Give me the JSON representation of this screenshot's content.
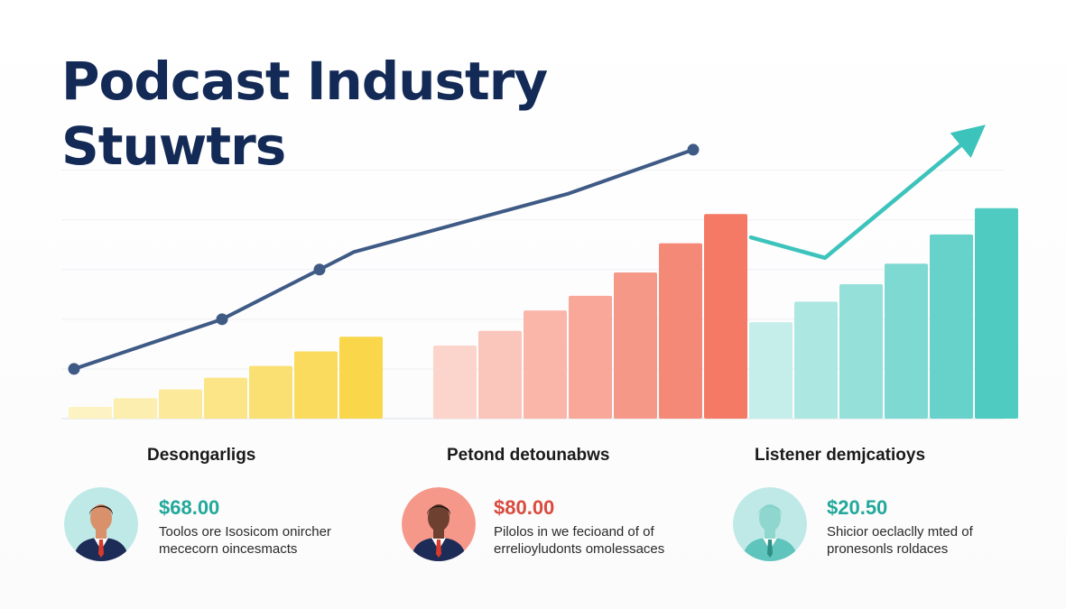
{
  "title": [
    "Podcast Industry",
    "Stuwtrs"
  ],
  "colors": {
    "title": "#132a56",
    "trend_line": "#3e5a85",
    "yellow_light": "#fdf3c2",
    "yellow_dark": "#f9d64a",
    "coral_light": "#fbd4cb",
    "coral_dark": "#f47a66",
    "teal_light": "#c5eeea",
    "teal_dark": "#4fcbc2",
    "teal_arrow": "#3cc3bb"
  },
  "chart_data": {
    "type": "bar",
    "title": "Podcast Industry Stuwtrs",
    "xlabel": "",
    "ylabel": "",
    "ylim": [
      0,
      100
    ],
    "grid": true,
    "series": [
      {
        "values": [
          4,
          7,
          10,
          14,
          18,
          23,
          28
        ]
      },
      {
        "values": [
          25,
          30,
          37,
          42,
          50,
          60,
          70
        ]
      },
      {
        "values": [
          33,
          40,
          46,
          53,
          63,
          72
        ]
      }
    ],
    "trend_line": [
      {
        "x": 0,
        "y": 17
      },
      {
        "x": 1,
        "y": 34
      },
      {
        "x": 2,
        "y": 51
      },
      {
        "x": 3,
        "y": 57
      },
      {
        "x": 4,
        "y": 77
      },
      {
        "x": 5,
        "y": 92
      }
    ],
    "trend_arrow": [
      {
        "x": 0,
        "y": 62
      },
      {
        "x": 1,
        "y": 55
      },
      {
        "x": 2,
        "y": 97
      }
    ]
  },
  "panels": [
    {
      "caption": "Desongarligs",
      "value": "$68.00",
      "value_color": "#22a89a",
      "desc": [
        "Toolos ore Isosicom onircher",
        "mececorn oincesmacts"
      ],
      "avatar": {
        "bg": "#bfe9e7",
        "skin": "#d9916c",
        "suit": "#1d2b57",
        "tie": "#d93a2b",
        "hair": "#2a1d18"
      }
    },
    {
      "caption": "Petond detounabws",
      "value": "$80.00",
      "value_color": "#d94b3e",
      "desc": [
        "Pilolos in we fecioand of of",
        "errelioyludonts omolessaces"
      ],
      "avatar": {
        "bg": "#f5988a",
        "skin": "#6e4030",
        "suit": "#1d2b57",
        "tie": "#d93a2b",
        "hair": "#1a1412"
      }
    },
    {
      "caption": "Listener demjcatioys",
      "value": "$20.50",
      "value_color": "#22a89a",
      "desc": [
        "Shicior oeclaclly mted of",
        "pronesonls roldaces"
      ],
      "avatar": {
        "bg": "#bfe9e7",
        "skin": "#8fd6cf",
        "suit": "#5fc4bc",
        "tie": "#2f8f87",
        "hair": "#7fcfc8"
      }
    }
  ]
}
